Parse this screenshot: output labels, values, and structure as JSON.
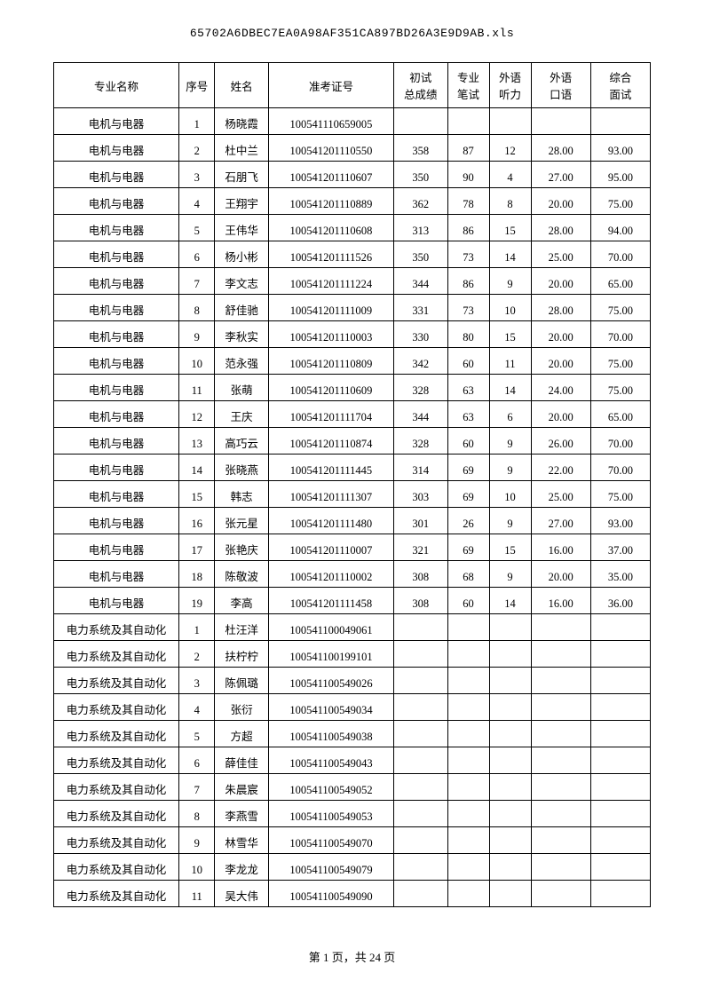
{
  "filename": "65702A6DBEC7EA0A98AF351CA897BD26A3E9D9AB.xls",
  "footer": "第 1 页，共 24 页",
  "columns": [
    "专业名称",
    "序号",
    "姓名",
    "准考证号",
    "初试\n总成绩",
    "专业\n笔试",
    "外语\n听力",
    "外语\n口语",
    "综合\n面试"
  ],
  "rows": [
    [
      "电机与电器",
      "1",
      "杨晓霞",
      "100541110659005",
      "",
      "",
      "",
      "",
      ""
    ],
    [
      "电机与电器",
      "2",
      "杜中兰",
      "100541201110550",
      "358",
      "87",
      "12",
      "28.00",
      "93.00"
    ],
    [
      "电机与电器",
      "3",
      "石朋飞",
      "100541201110607",
      "350",
      "90",
      "4",
      "27.00",
      "95.00"
    ],
    [
      "电机与电器",
      "4",
      "王翔宇",
      "100541201110889",
      "362",
      "78",
      "8",
      "20.00",
      "75.00"
    ],
    [
      "电机与电器",
      "5",
      "王伟华",
      "100541201110608",
      "313",
      "86",
      "15",
      "28.00",
      "94.00"
    ],
    [
      "电机与电器",
      "6",
      "杨小彬",
      "100541201111526",
      "350",
      "73",
      "14",
      "25.00",
      "70.00"
    ],
    [
      "电机与电器",
      "7",
      "李文志",
      "100541201111224",
      "344",
      "86",
      "9",
      "20.00",
      "65.00"
    ],
    [
      "电机与电器",
      "8",
      "舒佳驰",
      "100541201111009",
      "331",
      "73",
      "10",
      "28.00",
      "75.00"
    ],
    [
      "电机与电器",
      "9",
      "李秋实",
      "100541201110003",
      "330",
      "80",
      "15",
      "20.00",
      "70.00"
    ],
    [
      "电机与电器",
      "10",
      "范永强",
      "100541201110809",
      "342",
      "60",
      "11",
      "20.00",
      "75.00"
    ],
    [
      "电机与电器",
      "11",
      "张萌",
      "100541201110609",
      "328",
      "63",
      "14",
      "24.00",
      "75.00"
    ],
    [
      "电机与电器",
      "12",
      "王庆",
      "100541201111704",
      "344",
      "63",
      "6",
      "20.00",
      "65.00"
    ],
    [
      "电机与电器",
      "13",
      "高巧云",
      "100541201110874",
      "328",
      "60",
      "9",
      "26.00",
      "70.00"
    ],
    [
      "电机与电器",
      "14",
      "张晓燕",
      "100541201111445",
      "314",
      "69",
      "9",
      "22.00",
      "70.00"
    ],
    [
      "电机与电器",
      "15",
      "韩志",
      "100541201111307",
      "303",
      "69",
      "10",
      "25.00",
      "75.00"
    ],
    [
      "电机与电器",
      "16",
      "张元星",
      "100541201111480",
      "301",
      "26",
      "9",
      "27.00",
      "93.00"
    ],
    [
      "电机与电器",
      "17",
      "张艳庆",
      "100541201110007",
      "321",
      "69",
      "15",
      "16.00",
      "37.00"
    ],
    [
      "电机与电器",
      "18",
      "陈敬波",
      "100541201110002",
      "308",
      "68",
      "9",
      "20.00",
      "35.00"
    ],
    [
      "电机与电器",
      "19",
      "李高",
      "100541201111458",
      "308",
      "60",
      "14",
      "16.00",
      "36.00"
    ],
    [
      "电力系统及其自动化",
      "1",
      "杜汪洋",
      "100541100049061",
      "",
      "",
      "",
      "",
      ""
    ],
    [
      "电力系统及其自动化",
      "2",
      "扶柠柠",
      "100541100199101",
      "",
      "",
      "",
      "",
      ""
    ],
    [
      "电力系统及其自动化",
      "3",
      "陈佩璐",
      "100541100549026",
      "",
      "",
      "",
      "",
      ""
    ],
    [
      "电力系统及其自动化",
      "4",
      "张衍",
      "100541100549034",
      "",
      "",
      "",
      "",
      ""
    ],
    [
      "电力系统及其自动化",
      "5",
      "方超",
      "100541100549038",
      "",
      "",
      "",
      "",
      ""
    ],
    [
      "电力系统及其自动化",
      "6",
      "薛佳佳",
      "100541100549043",
      "",
      "",
      "",
      "",
      ""
    ],
    [
      "电力系统及其自动化",
      "7",
      "朱晨宸",
      "100541100549052",
      "",
      "",
      "",
      "",
      ""
    ],
    [
      "电力系统及其自动化",
      "8",
      "李燕雪",
      "100541100549053",
      "",
      "",
      "",
      "",
      ""
    ],
    [
      "电力系统及其自动化",
      "9",
      "林雪华",
      "100541100549070",
      "",
      "",
      "",
      "",
      ""
    ],
    [
      "电力系统及其自动化",
      "10",
      "李龙龙",
      "100541100549079",
      "",
      "",
      "",
      "",
      ""
    ],
    [
      "电力系统及其自动化",
      "11",
      "吴大伟",
      "100541100549090",
      "",
      "",
      "",
      "",
      ""
    ]
  ]
}
